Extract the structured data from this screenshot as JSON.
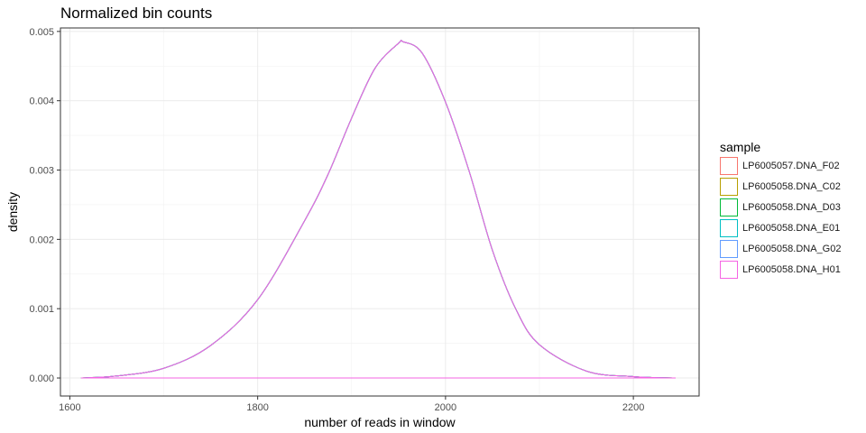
{
  "chart_data": {
    "type": "line",
    "title": "Normalized bin counts",
    "xlabel": "number of reads in window",
    "ylabel": "density",
    "xlim": [
      1590,
      2270
    ],
    "ylim": [
      -0.00026,
      0.00505
    ],
    "x_ticks": [
      1600,
      1800,
      2000,
      2200
    ],
    "x_tick_labels": [
      "1600",
      "1800",
      "2000",
      "2200"
    ],
    "y_ticks": [
      0,
      0.001,
      0.002,
      0.003,
      0.004,
      0.005
    ],
    "y_tick_labels": [
      "0.000",
      "0.001",
      "0.002",
      "0.003",
      "0.004",
      "0.005"
    ],
    "grid": true,
    "legend": {
      "title": "sample",
      "position": "right",
      "entries": [
        {
          "name": "LP6005057.DNA_F02",
          "color": "#F8766D"
        },
        {
          "name": "LP6005058.DNA_C02",
          "color": "#B79F00"
        },
        {
          "name": "LP6005058.DNA_D03",
          "color": "#00BA38"
        },
        {
          "name": "LP6005058.DNA_E01",
          "color": "#00BFC4"
        },
        {
          "name": "LP6005058.DNA_G02",
          "color": "#619CFF"
        },
        {
          "name": "LP6005058.DNA_H01",
          "color": "#F564E3"
        }
      ]
    },
    "series": [
      {
        "name": "LP6005057.DNA_F02",
        "color": "#F8766D",
        "x": [
          1612,
          1650,
          1700,
          1750,
          1800,
          1850,
          1875,
          1900,
          1925,
          1950,
          1955,
          1975,
          2000,
          2025,
          2050,
          2075,
          2100,
          2150,
          2200,
          2245
        ],
        "y": [
          0.0,
          3e-05,
          0.00014,
          0.00047,
          0.00113,
          0.00227,
          0.00294,
          0.00375,
          0.00447,
          0.00483,
          0.00485,
          0.00469,
          0.00398,
          0.00299,
          0.00184,
          0.00099,
          0.00048,
          0.0001,
          2e-05,
          0.0
        ]
      },
      {
        "name": "LP6005058.DNA_C02",
        "color": "#B79F00",
        "x": [
          1612,
          1650,
          1700,
          1750,
          1800,
          1850,
          1875,
          1900,
          1925,
          1950,
          1955,
          1975,
          2000,
          2025,
          2050,
          2075,
          2100,
          2150,
          2200,
          2245
        ],
        "y": [
          0.0,
          3e-05,
          0.00014,
          0.00047,
          0.00113,
          0.00227,
          0.00294,
          0.00375,
          0.00447,
          0.00483,
          0.00485,
          0.00469,
          0.00398,
          0.00299,
          0.00184,
          0.00099,
          0.00048,
          0.0001,
          2e-05,
          0.0
        ]
      },
      {
        "name": "LP6005058.DNA_D03",
        "color": "#00BA38",
        "x": [
          1612,
          1650,
          1700,
          1750,
          1800,
          1850,
          1875,
          1900,
          1925,
          1950,
          1955,
          1975,
          2000,
          2025,
          2050,
          2075,
          2100,
          2150,
          2200,
          2245
        ],
        "y": [
          0.0,
          3e-05,
          0.00014,
          0.00047,
          0.00113,
          0.00227,
          0.00294,
          0.00375,
          0.00447,
          0.00483,
          0.00485,
          0.00469,
          0.00398,
          0.00299,
          0.00184,
          0.00099,
          0.00048,
          0.0001,
          2e-05,
          0.0
        ]
      },
      {
        "name": "LP6005058.DNA_E01",
        "color": "#00BFC4",
        "x": [
          1612,
          1650,
          1700,
          1750,
          1800,
          1850,
          1875,
          1900,
          1925,
          1950,
          1955,
          1975,
          2000,
          2025,
          2050,
          2075,
          2100,
          2150,
          2200,
          2245
        ],
        "y": [
          0.0,
          3e-05,
          0.00014,
          0.00047,
          0.00113,
          0.00227,
          0.00294,
          0.00375,
          0.00447,
          0.00483,
          0.00485,
          0.00469,
          0.00398,
          0.00299,
          0.00184,
          0.00099,
          0.00048,
          0.0001,
          2e-05,
          0.0
        ]
      },
      {
        "name": "LP6005058.DNA_G02",
        "color": "#619CFF",
        "x": [
          1612,
          1650,
          1700,
          1750,
          1800,
          1850,
          1875,
          1900,
          1925,
          1950,
          1955,
          1975,
          2000,
          2025,
          2050,
          2075,
          2100,
          2150,
          2200,
          2245
        ],
        "y": [
          0.0,
          3e-05,
          0.00014,
          0.00047,
          0.00113,
          0.00227,
          0.00294,
          0.00375,
          0.00447,
          0.00483,
          0.00485,
          0.00469,
          0.00398,
          0.00299,
          0.00184,
          0.00099,
          0.00048,
          0.0001,
          2e-05,
          0.0
        ]
      },
      {
        "name": "LP6005058.DNA_H01",
        "color": "#F564E3",
        "x": [
          1612,
          1650,
          1700,
          1750,
          1800,
          1850,
          1875,
          1900,
          1925,
          1950,
          1955,
          1975,
          2000,
          2025,
          2050,
          2075,
          2100,
          2150,
          2200,
          2245
        ],
        "y": [
          0.0,
          3e-05,
          0.00014,
          0.00047,
          0.00113,
          0.00227,
          0.00294,
          0.00375,
          0.00447,
          0.00483,
          0.00485,
          0.00469,
          0.00398,
          0.00299,
          0.00184,
          0.00099,
          0.00048,
          0.0001,
          2e-05,
          0.0
        ]
      }
    ]
  }
}
